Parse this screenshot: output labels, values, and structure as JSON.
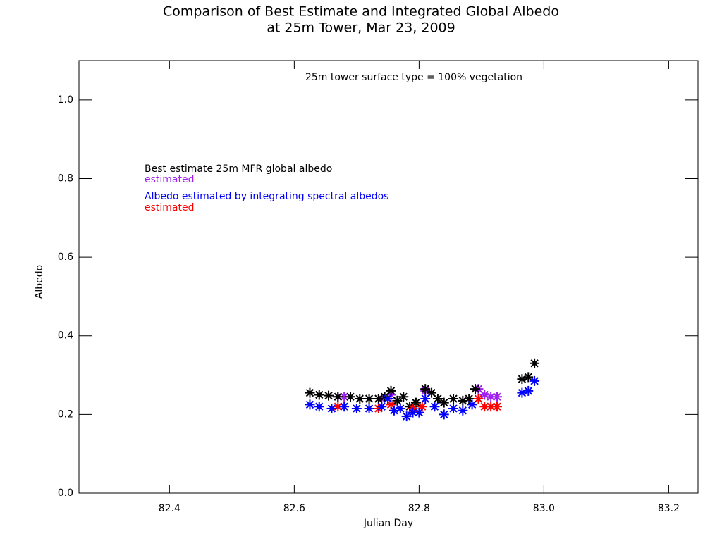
{
  "chart_data": {
    "type": "scatter",
    "title": [
      "Comparison of Best Estimate and Integrated Global Albedo",
      "at 25m Tower,  Mar 23, 2009"
    ],
    "annotation": "25m tower surface type = 100% vegetation",
    "x_label": "Julian Day",
    "y_label": "Albedo",
    "xlim": [
      82.255,
      83.247
    ],
    "ylim": [
      0,
      1.1
    ],
    "xticks": [
      82.4,
      82.6,
      82.8,
      {
        "value": 83.0,
        "label": "83.0"
      },
      83.2
    ],
    "yticks": [
      {
        "value": 0,
        "label": "0.0"
      },
      0.2,
      0.4,
      0.6,
      0.8,
      {
        "value": 1,
        "label": "1.0"
      }
    ],
    "series": [
      {
        "name": "estimated",
        "color": "#a020f0",
        "x": [
          82.67,
          82.68,
          82.74,
          82.755,
          82.81,
          82.895,
          82.905,
          82.915,
          82.925
        ],
        "values": [
          0.245,
          0.245,
          0.24,
          0.25,
          0.26,
          0.265,
          0.25,
          0.245,
          0.245
        ]
      },
      {
        "name": "Best estimate 25m MFR global albedo",
        "color": "#000000",
        "x": [
          82.625,
          82.64,
          82.655,
          82.67,
          82.69,
          82.705,
          82.72,
          82.735,
          82.745,
          82.755,
          82.765,
          82.775,
          82.785,
          82.795,
          82.81,
          82.82,
          82.83,
          82.84,
          82.855,
          82.87,
          82.88,
          82.89,
          82.965,
          82.975,
          82.985
        ],
        "values": [
          0.255,
          0.25,
          0.248,
          0.245,
          0.245,
          0.24,
          0.24,
          0.24,
          0.245,
          0.26,
          0.235,
          0.245,
          0.22,
          0.23,
          0.265,
          0.255,
          0.24,
          0.23,
          0.24,
          0.235,
          0.24,
          0.265,
          0.29,
          0.295,
          0.33
        ]
      },
      {
        "name": "estimated",
        "color": "#ff0000",
        "x": [
          82.67,
          82.735,
          82.755,
          82.79,
          82.805,
          82.895,
          82.905,
          82.915,
          82.925
        ],
        "values": [
          0.22,
          0.215,
          0.225,
          0.215,
          0.22,
          0.24,
          0.22,
          0.22,
          0.22
        ]
      },
      {
        "name": "Albedo estimated by integrating spectral albedos",
        "color": "#0000ff",
        "x": [
          82.625,
          82.64,
          82.66,
          82.68,
          82.7,
          82.72,
          82.74,
          82.75,
          82.76,
          82.77,
          82.78,
          82.79,
          82.8,
          82.81,
          82.825,
          82.84,
          82.855,
          82.87,
          82.885,
          82.965,
          82.975,
          82.985
        ],
        "values": [
          0.225,
          0.22,
          0.215,
          0.22,
          0.215,
          0.215,
          0.22,
          0.24,
          0.21,
          0.215,
          0.195,
          0.205,
          0.205,
          0.24,
          0.22,
          0.2,
          0.215,
          0.21,
          0.225,
          0.255,
          0.26,
          0.285
        ]
      }
    ],
    "legend_order": [
      1,
      0,
      3,
      2
    ]
  }
}
